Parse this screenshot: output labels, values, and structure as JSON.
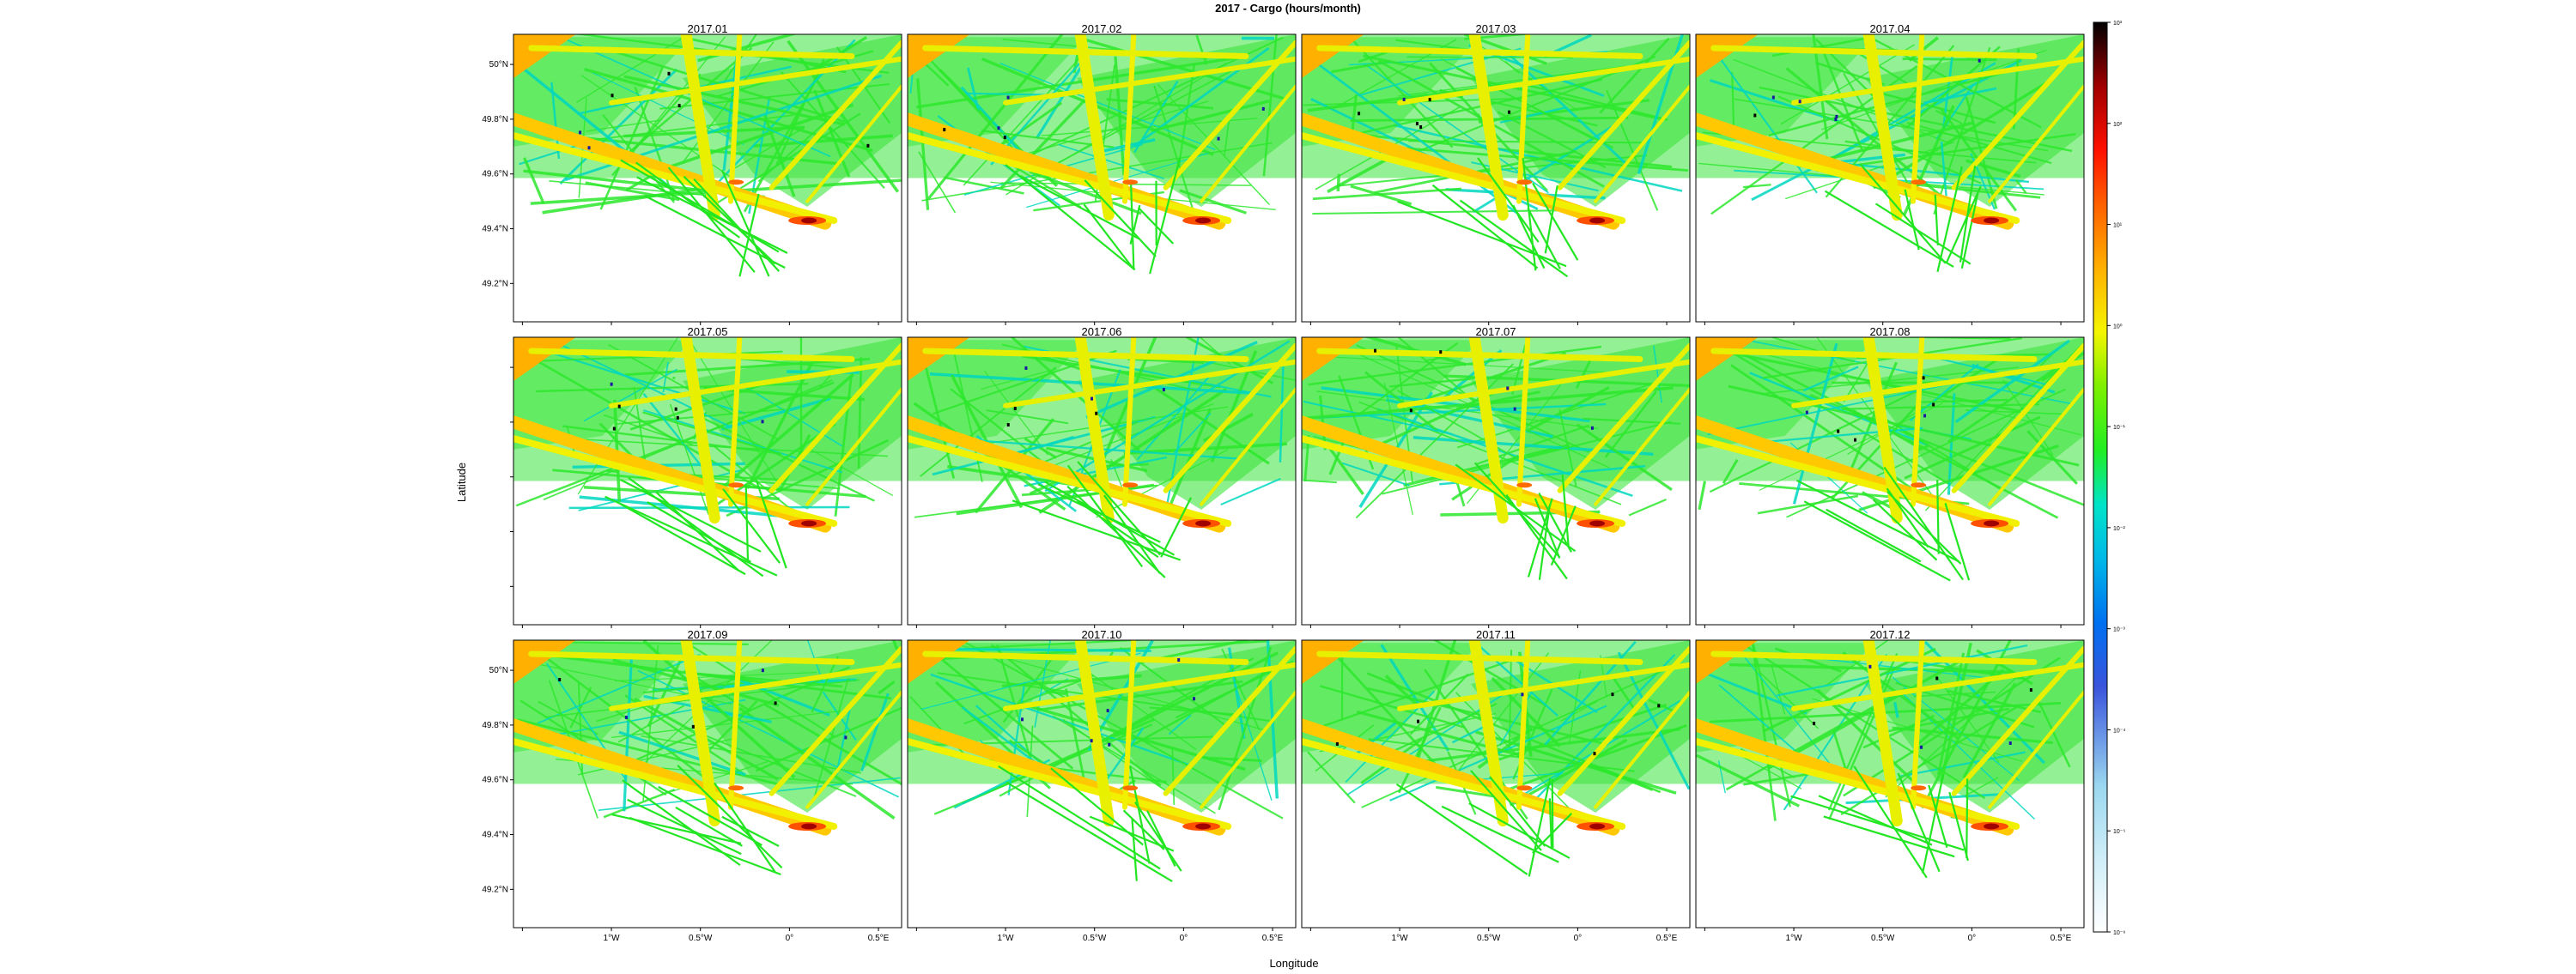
{
  "chart_data": {
    "type": "heatmap",
    "title": "2017 - Cargo (hours/month)",
    "xlabel": "Longitude",
    "ylabel": "Latitude",
    "layout": {
      "rows": 3,
      "cols": 4
    },
    "panels": [
      "2017.01",
      "2017.02",
      "2017.03",
      "2017.04",
      "2017.05",
      "2017.06",
      "2017.07",
      "2017.08",
      "2017.09",
      "2017.10",
      "2017.11",
      "2017.12"
    ],
    "x_ticks": [
      {
        "value": -1.5,
        "label": ""
      },
      {
        "value": -1.0,
        "label": "1°W"
      },
      {
        "value": -0.5,
        "label": "0.5°W"
      },
      {
        "value": 0.0,
        "label": "0°"
      },
      {
        "value": 0.5,
        "label": "0.5°E"
      }
    ],
    "y_ticks": [
      {
        "value": 50.0,
        "label": "50°N"
      },
      {
        "value": 49.8,
        "label": "49.8°N"
      },
      {
        "value": 49.6,
        "label": "49.6°N"
      },
      {
        "value": 49.4,
        "label": "49.4°N"
      },
      {
        "value": 49.2,
        "label": "49.2°N"
      }
    ],
    "xlim": [
      -1.55,
      0.63
    ],
    "ylim": [
      49.06,
      50.11
    ],
    "colorbar": {
      "scale": "log",
      "range": [
        1e-06,
        1000
      ],
      "tick_values": [
        1e-06,
        1e-05,
        0.0001,
        0.001,
        0.01,
        0.1,
        1,
        10,
        100,
        1000
      ],
      "tick_labels": [
        "10⁻⁶",
        "10⁻⁵",
        "10⁻⁴",
        "10⁻³",
        "10⁻²",
        "10⁻¹",
        "10⁰",
        "10¹",
        "10²",
        "10³"
      ],
      "colors": [
        "#ffffff",
        "#cfeef8",
        "#9bd8f0",
        "#3a54dc",
        "#00a2e8",
        "#00e4c8",
        "#22ee22",
        "#f5f500",
        "#ffb000",
        "#ff3000",
        "#a00000",
        "#000000"
      ]
    }
  }
}
